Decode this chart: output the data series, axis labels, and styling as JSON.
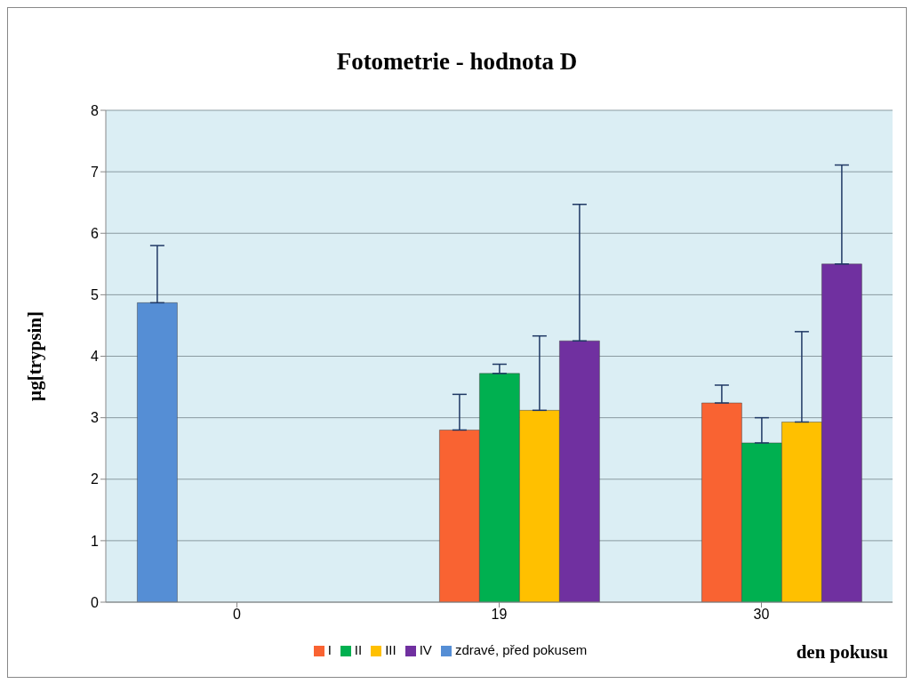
{
  "chart_data": {
    "type": "bar",
    "title": "Fotometrie - hodnota D",
    "xlabel": "den pokusu",
    "ylabel": "µg[trypsin]",
    "categories": [
      "0",
      "19",
      "30"
    ],
    "series": [
      {
        "name": "zdravé, před pokusem",
        "color": "#558ed5",
        "values": [
          4.87,
          null,
          null
        ],
        "errors": [
          [
            4.87,
            5.8
          ],
          null,
          null
        ]
      },
      {
        "name": "I",
        "color": "#f96332",
        "values": [
          null,
          2.8,
          3.24
        ],
        "errors": [
          null,
          [
            2.8,
            3.38
          ],
          [
            3.24,
            3.53
          ]
        ]
      },
      {
        "name": "II",
        "color": "#00b050",
        "values": [
          null,
          3.72,
          2.59
        ],
        "errors": [
          null,
          [
            3.72,
            3.87
          ],
          [
            2.59,
            3.0
          ]
        ]
      },
      {
        "name": "III",
        "color": "#ffc000",
        "values": [
          null,
          3.12,
          2.93
        ],
        "errors": [
          null,
          [
            3.12,
            4.33
          ],
          [
            2.93,
            4.4
          ]
        ]
      },
      {
        "name": "IV",
        "color": "#7030a0",
        "values": [
          null,
          4.25,
          5.5
        ],
        "errors": [
          null,
          [
            4.25,
            6.47
          ],
          [
            5.5,
            7.11
          ]
        ]
      }
    ],
    "ylim": [
      0,
      8
    ],
    "yticks": [
      0,
      1,
      2,
      3,
      4,
      5,
      6,
      7,
      8
    ],
    "grid": "y",
    "legend": "bottom"
  }
}
